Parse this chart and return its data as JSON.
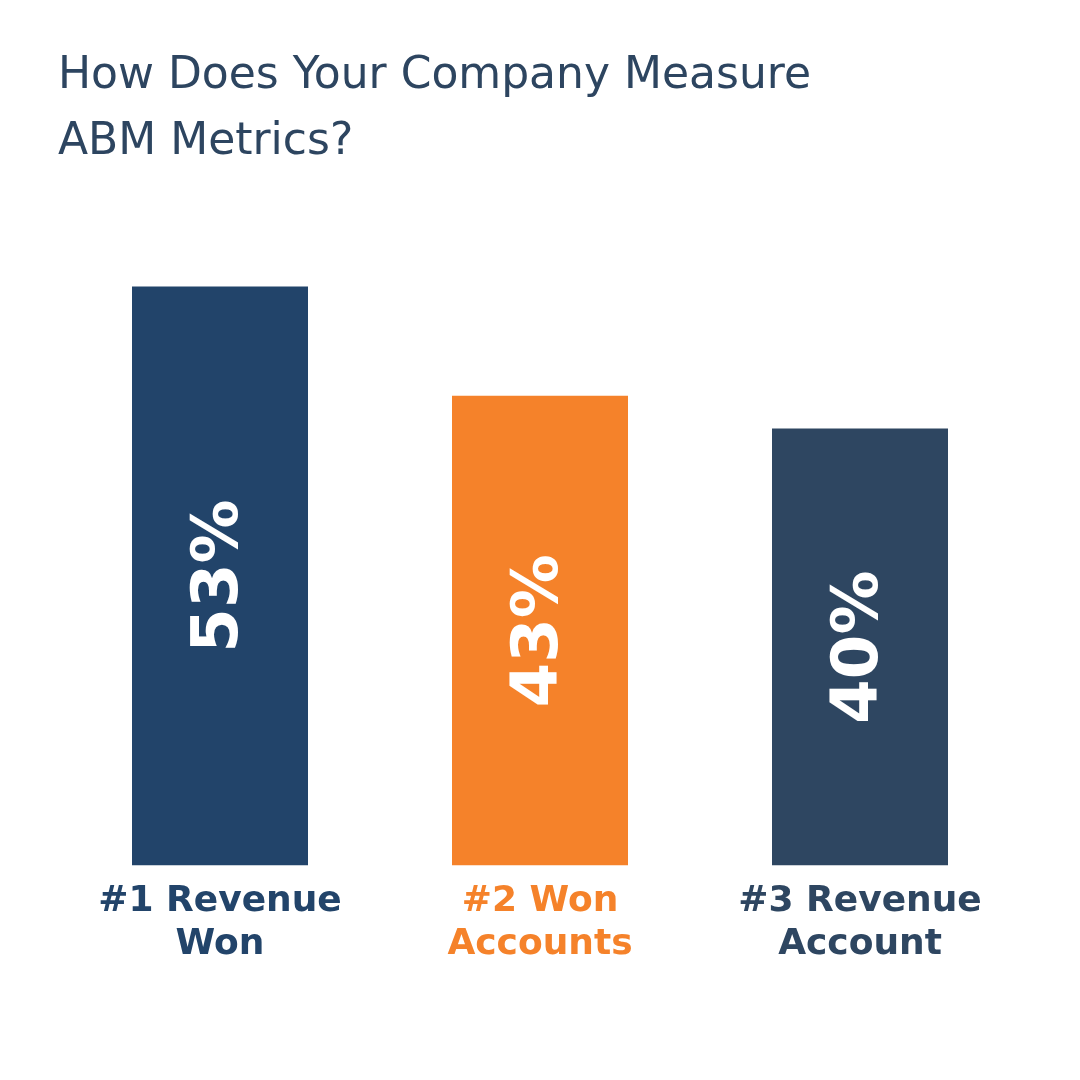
{
  "chart_data": {
    "type": "bar",
    "title": "How Does Your Company Measure ABM Metrics?",
    "categories": [
      "#1 Revenue Won",
      "#2 Won Accounts",
      "#3 Revenue Account"
    ],
    "values": [
      53,
      43,
      40
    ],
    "colors": [
      "#22446a",
      "#f5822a",
      "#2e4661"
    ],
    "value_labels": [
      "53%",
      "43%",
      "40%"
    ],
    "grid": false,
    "legend": false
  }
}
